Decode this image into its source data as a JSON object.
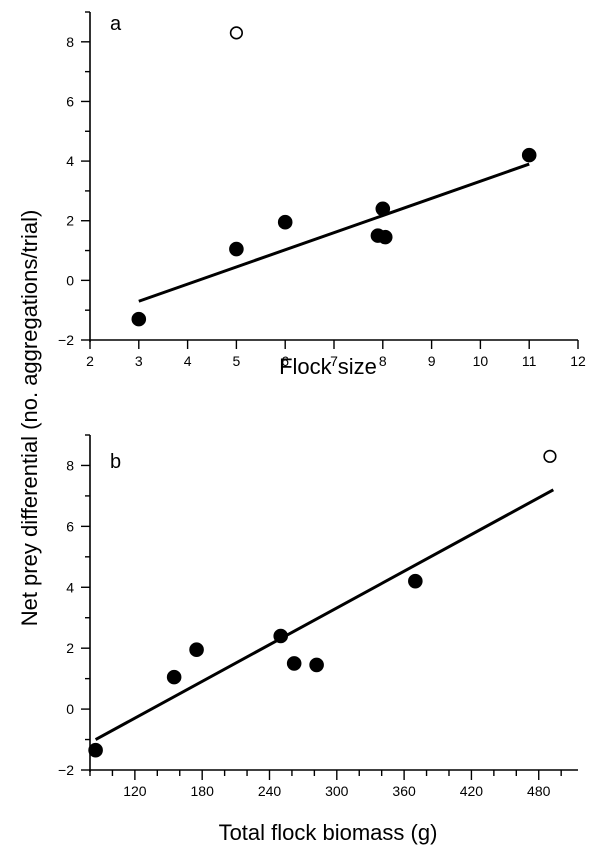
{
  "shared_ylabel": "Net prey differential (no. aggregations/trial)",
  "chart_data": [
    {
      "type": "scatter",
      "panel_label": "a",
      "xlabel": "Flock size",
      "ylabel": "Net prey differential (no. aggregations/trial)",
      "xlim": [
        2,
        12
      ],
      "ylim": [
        -2,
        9
      ],
      "xticks": [
        2,
        3,
        4,
        5,
        6,
        7,
        8,
        9,
        10,
        11,
        12
      ],
      "yticks": [
        -2,
        0,
        2,
        4,
        6,
        8
      ],
      "points": [
        {
          "x": 3,
          "y": -1.3,
          "filled": true
        },
        {
          "x": 5,
          "y": 1.05,
          "filled": true
        },
        {
          "x": 6,
          "y": 1.95,
          "filled": true
        },
        {
          "x": 7.9,
          "y": 1.5,
          "filled": true
        },
        {
          "x": 8.05,
          "y": 1.45,
          "filled": true
        },
        {
          "x": 8,
          "y": 2.4,
          "filled": true
        },
        {
          "x": 11,
          "y": 4.2,
          "filled": true
        },
        {
          "x": 5,
          "y": 8.3,
          "filled": false
        }
      ],
      "fit_line": {
        "x": [
          3,
          11
        ],
        "y": [
          -0.7,
          3.9
        ]
      }
    },
    {
      "type": "scatter",
      "panel_label": "b",
      "xlabel": "Total flock biomass (g)",
      "ylabel": "Net prey differential (no. aggregations/trial)",
      "xlim": [
        80,
        515
      ],
      "ylim": [
        -2,
        9
      ],
      "xticks": [
        120,
        180,
        240,
        300,
        360,
        420,
        480
      ],
      "xticks_minor_step": 20,
      "yticks": [
        -2,
        0,
        2,
        4,
        6,
        8
      ],
      "points": [
        {
          "x": 85,
          "y": -1.35,
          "filled": true
        },
        {
          "x": 155,
          "y": 1.05,
          "filled": true
        },
        {
          "x": 175,
          "y": 1.95,
          "filled": true
        },
        {
          "x": 250,
          "y": 2.4,
          "filled": true
        },
        {
          "x": 262,
          "y": 1.5,
          "filled": true
        },
        {
          "x": 282,
          "y": 1.45,
          "filled": true
        },
        {
          "x": 370,
          "y": 4.2,
          "filled": true
        },
        {
          "x": 490,
          "y": 8.3,
          "filled": false
        }
      ],
      "fit_line": {
        "x": [
          85,
          493
        ],
        "y": [
          -1.0,
          7.2
        ]
      }
    }
  ]
}
